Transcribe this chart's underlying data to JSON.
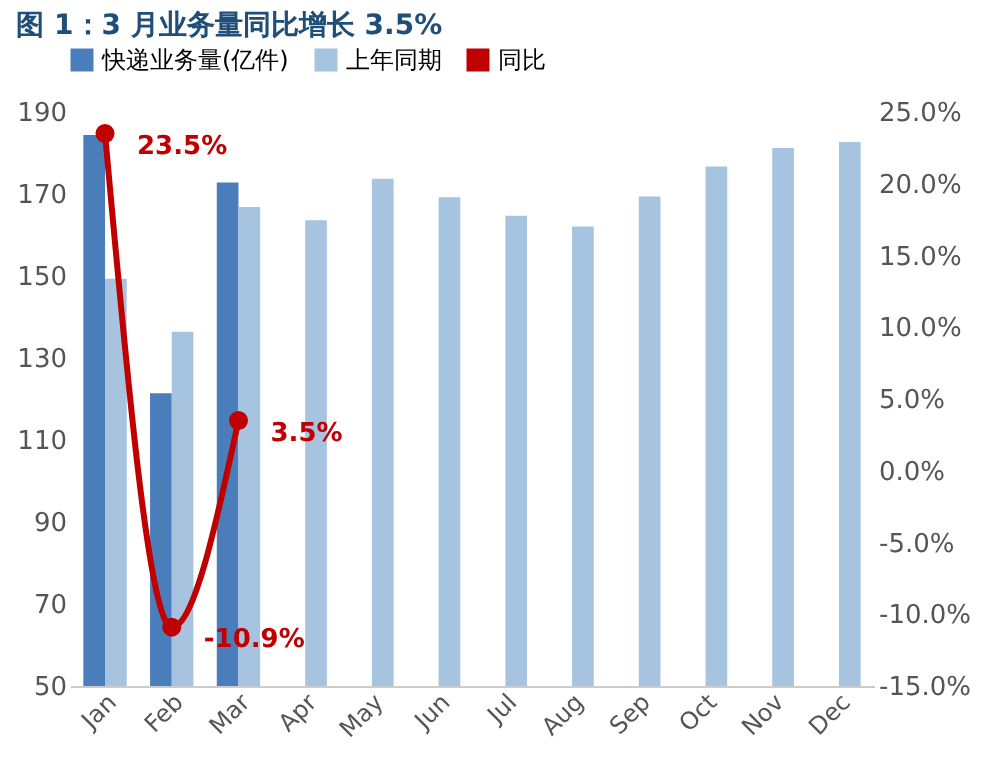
{
  "chart_data": {
    "type": "bar",
    "title": "图 1：3 月业务量同比增长 3.5%",
    "categories": [
      "Jan",
      "Feb",
      "Mar",
      "Apr",
      "May",
      "Jun",
      "Jul",
      "Aug",
      "Sep",
      "Oct",
      "Nov",
      "Dec"
    ],
    "series": [
      {
        "name": "快递业务量(亿件)",
        "color": "#4a7ebb",
        "values": [
          184.4,
          121.4,
          172.8,
          null,
          null,
          null,
          null,
          null,
          null,
          null,
          null,
          null
        ]
      },
      {
        "name": "上年同期",
        "color": "#a6c3e0",
        "values": [
          149.3,
          136.4,
          166.8,
          163.6,
          173.7,
          169.2,
          164.7,
          162.1,
          169.4,
          176.7,
          181.2,
          182.7
        ]
      },
      {
        "name": "同比",
        "type": "line",
        "axis": "y2",
        "color": "#c00000",
        "marker": "circle",
        "line_style": "solid",
        "values": [
          23.5,
          -10.9,
          3.5,
          null,
          null,
          null,
          null,
          null,
          null,
          null,
          null,
          null
        ],
        "value_labels": [
          "23.5%",
          "-10.9%",
          "3.5%",
          null,
          null,
          null,
          null,
          null,
          null,
          null,
          null,
          null
        ]
      }
    ],
    "ylim": [
      50,
      190
    ],
    "yticks": [
      50,
      70,
      90,
      110,
      130,
      150,
      170,
      190
    ],
    "y2lim": [
      -15,
      25
    ],
    "y2ticks": [
      {
        "value": -15,
        "label": "-15.0%"
      },
      {
        "value": -10,
        "label": "-10.0%"
      },
      {
        "value": -5,
        "label": "-5.0%"
      },
      {
        "value": 0,
        "label": "0.0%"
      },
      {
        "value": 5,
        "label": "5.0%"
      },
      {
        "value": 10,
        "label": "10.0%"
      },
      {
        "value": 15,
        "label": "15.0%"
      },
      {
        "value": 20,
        "label": "20.0%"
      },
      {
        "value": 25,
        "label": "25.0%"
      }
    ],
    "grid": false,
    "legend": "top"
  }
}
